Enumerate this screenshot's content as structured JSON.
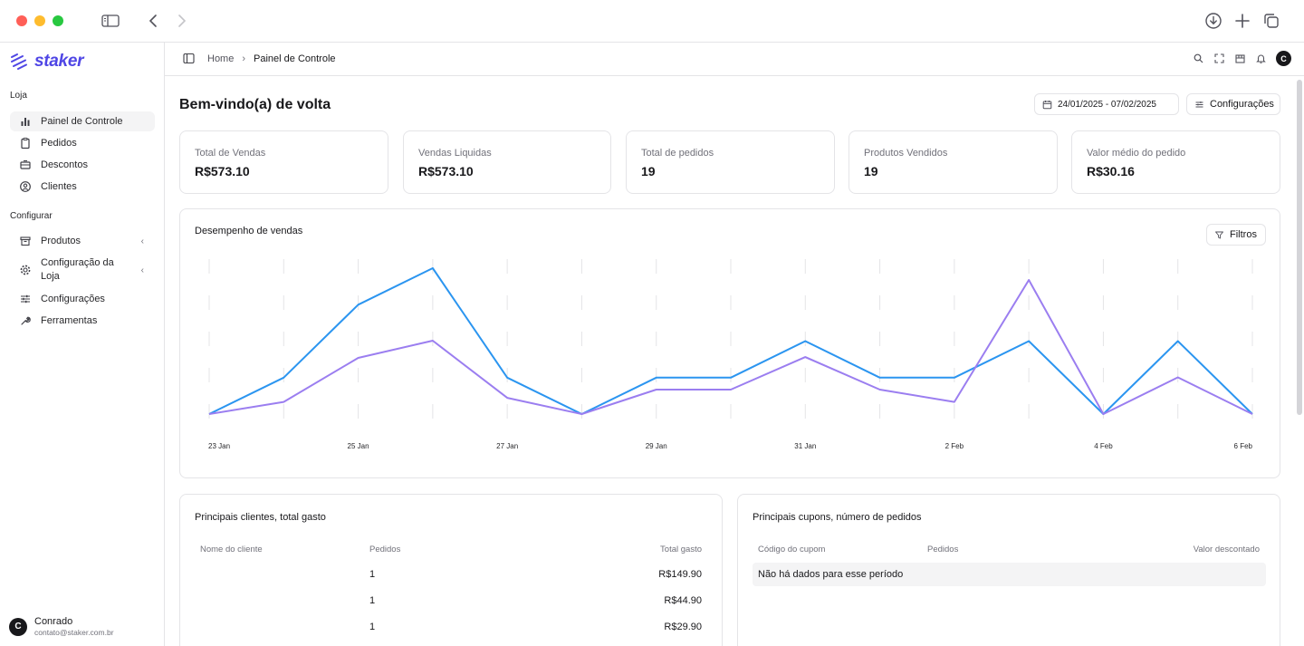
{
  "app": {
    "brand": "staker",
    "accent": "#4f46e5"
  },
  "window": {
    "traffic_lights": [
      "#ff5f57",
      "#febc2e",
      "#28c840"
    ]
  },
  "sidebar": {
    "group_store": "Loja",
    "group_config": "Configurar",
    "items": [
      {
        "label": "Painel de Controle",
        "icon": "bar-chart-icon",
        "active": true
      },
      {
        "label": "Pedidos",
        "icon": "clipboard-icon"
      },
      {
        "label": "Descontos",
        "icon": "ticket-icon"
      },
      {
        "label": "Clientes",
        "icon": "user-circle-icon"
      },
      {
        "label": "Produtos",
        "icon": "archive-icon",
        "has_children": true
      },
      {
        "label": "Configuração da Loja",
        "icon": "gear-icon",
        "has_children": true
      },
      {
        "label": "Configurações",
        "icon": "sliders-icon"
      },
      {
        "label": "Ferramentas",
        "icon": "wrench-icon"
      }
    ],
    "user": {
      "initial": "C",
      "name": "Conrado",
      "email": "contato@staker.com.br"
    }
  },
  "topbar": {
    "breadcrumb": [
      "Home",
      "Painel de Controle"
    ],
    "avatar_initial": "C"
  },
  "page": {
    "title": "Bem-vindo(a) de volta",
    "date_range": "24/01/2025 - 07/02/2025",
    "settings_label": "Configurações"
  },
  "stats": [
    {
      "label": "Total de Vendas",
      "value": "R$573.10"
    },
    {
      "label": "Vendas Liquidas",
      "value": "R$573.10"
    },
    {
      "label": "Total de pedidos",
      "value": "19"
    },
    {
      "label": "Produtos Vendidos",
      "value": "19"
    },
    {
      "label": "Valor médio do pedido",
      "value": "R$30.16"
    }
  ],
  "performance": {
    "title": "Desempenho de vendas",
    "filter_label": "Filtros"
  },
  "chart_data": {
    "type": "line",
    "title": "Desempenho de vendas",
    "x": [
      "23 Jan",
      "24 Jan",
      "25 Jan",
      "26 Jan",
      "27 Jan",
      "28 Jan",
      "29 Jan",
      "30 Jan",
      "31 Jan",
      "1 Feb",
      "2 Feb",
      "3 Feb",
      "4 Feb",
      "5 Feb",
      "6 Feb"
    ],
    "x_tick_labels": [
      "23 Jan",
      "25 Jan",
      "27 Jan",
      "29 Jan",
      "31 Jan",
      "2 Feb",
      "4 Feb",
      "6 Feb"
    ],
    "series": [
      {
        "color": "#2b95f0",
        "values": [
          0,
          1,
          3,
          4,
          1,
          0,
          1,
          1,
          2,
          1,
          1,
          2,
          0,
          2,
          0
        ]
      },
      {
        "color": "#9b7ef0",
        "values": [
          0,
          14.9,
          68.8,
          89.8,
          19.9,
          0,
          29.9,
          29.9,
          69.7,
          29.9,
          14.9,
          164.1,
          0,
          44.9,
          0
        ]
      }
    ],
    "grid": true,
    "legend": "none"
  },
  "top_customers": {
    "title": "Principais clientes, total gasto",
    "columns": [
      "Nome do cliente",
      "Pedidos",
      "Total gasto"
    ],
    "rows": [
      {
        "name": "",
        "orders": "1",
        "total": "R$149.90"
      },
      {
        "name": "",
        "orders": "1",
        "total": "R$44.90"
      },
      {
        "name": "",
        "orders": "1",
        "total": "R$29.90"
      }
    ]
  },
  "top_coupons": {
    "title": "Principais cupons, número de pedidos",
    "columns": [
      "Código do cupom",
      "Pedidos",
      "Valor descontado"
    ],
    "empty": "Não há dados para esse período"
  }
}
